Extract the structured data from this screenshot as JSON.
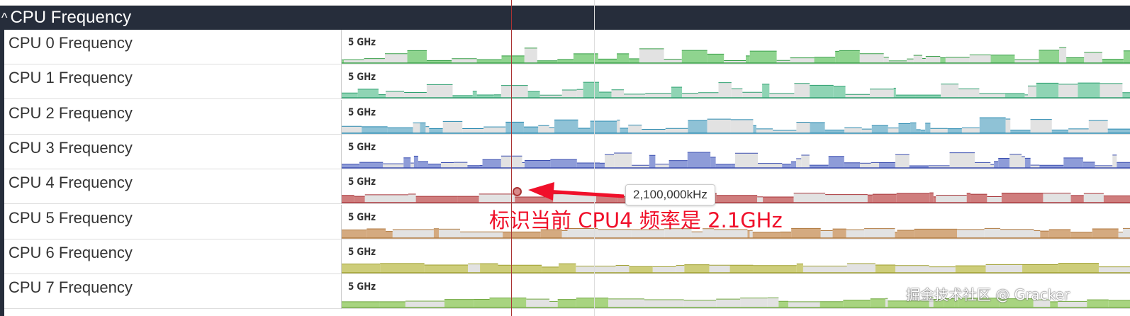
{
  "group": {
    "title": "CPU Frequency",
    "icon": "chevron-up-icon"
  },
  "tracks": [
    {
      "name": "CPU 0 Frequency",
      "scale": "5 GHz",
      "color": "#8fd48f",
      "line": "#3aa04a"
    },
    {
      "name": "CPU 1 Frequency",
      "scale": "5 GHz",
      "color": "#8fd4b4",
      "line": "#2ea070"
    },
    {
      "name": "CPU 2 Frequency",
      "scale": "5 GHz",
      "color": "#8fc2d6",
      "line": "#2a8ab0"
    },
    {
      "name": "CPU 3 Frequency",
      "scale": "5 GHz",
      "color": "#8e9cd8",
      "line": "#3c4fb0"
    },
    {
      "name": "CPU 4 Frequency",
      "scale": "5 GHz",
      "color": "#cf7d7d",
      "line": "#a8353a"
    },
    {
      "name": "CPU 5 Frequency",
      "scale": "5 GHz",
      "color": "#d4aa80",
      "line": "#b07a40"
    },
    {
      "name": "CPU 6 Frequency",
      "scale": "5 GHz",
      "color": "#cdcd7a",
      "line": "#a0a030"
    },
    {
      "name": "CPU 7 Frequency",
      "scale": "5 GHz",
      "color": "#a8d480",
      "line": "#70a840"
    }
  ],
  "tooltip": "2,100,000kHz",
  "annotation": "标识当前 CPU4 频率是 2.1GHz",
  "annotation_color": "#f0102a",
  "watermark": "掘金技术社区 @ Gracker"
}
